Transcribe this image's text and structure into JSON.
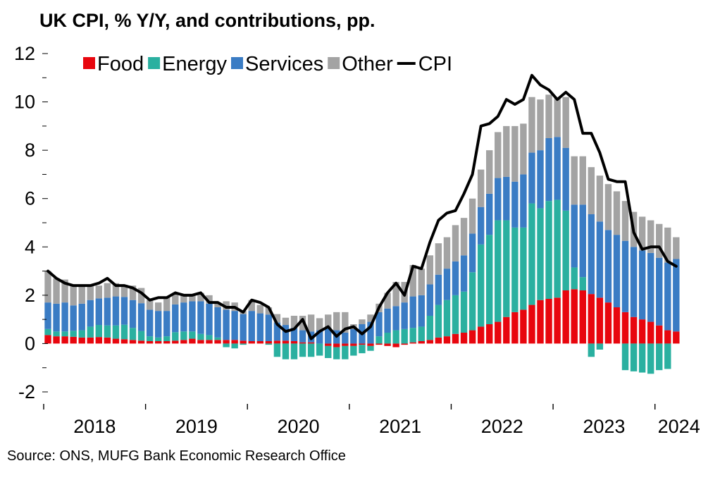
{
  "title": "UK CPI, % Y/Y, and contributions, pp.",
  "source": "Source: ONS, MUFG Bank Economic Research Office",
  "colors": {
    "Food": "#e8060e",
    "Energy": "#2ab0a0",
    "Services": "#3a7cc4",
    "Other": "#a3a3a3",
    "CPI": "#000000"
  },
  "chart_data": {
    "type": "bar",
    "stacked": true,
    "ylim": [
      -2,
      12
    ],
    "yticks": [
      "-2",
      "0",
      "2",
      "4",
      "6",
      "8",
      "10",
      "12"
    ],
    "xticklabels": [
      "2018",
      "2019",
      "2020",
      "2021",
      "2022",
      "2023",
      "2024"
    ],
    "legend": [
      "Food",
      "Energy",
      "Services",
      "Other",
      "CPI"
    ],
    "legend_position": "top",
    "x": [
      "2018-01",
      "2018-02",
      "2018-03",
      "2018-04",
      "2018-05",
      "2018-06",
      "2018-07",
      "2018-08",
      "2018-09",
      "2018-10",
      "2018-11",
      "2018-12",
      "2019-01",
      "2019-02",
      "2019-03",
      "2019-04",
      "2019-05",
      "2019-06",
      "2019-07",
      "2019-08",
      "2019-09",
      "2019-10",
      "2019-11",
      "2019-12",
      "2020-01",
      "2020-02",
      "2020-03",
      "2020-04",
      "2020-05",
      "2020-06",
      "2020-07",
      "2020-08",
      "2020-09",
      "2020-10",
      "2020-11",
      "2020-12",
      "2021-01",
      "2021-02",
      "2021-03",
      "2021-04",
      "2021-05",
      "2021-06",
      "2021-07",
      "2021-08",
      "2021-09",
      "2021-10",
      "2021-11",
      "2021-12",
      "2022-01",
      "2022-02",
      "2022-03",
      "2022-04",
      "2022-05",
      "2022-06",
      "2022-07",
      "2022-08",
      "2022-09",
      "2022-10",
      "2022-11",
      "2022-12",
      "2023-01",
      "2023-02",
      "2023-03",
      "2023-04",
      "2023-05",
      "2023-06",
      "2023-07",
      "2023-08",
      "2023-09",
      "2023-10",
      "2023-11",
      "2023-12",
      "2024-01",
      "2024-02",
      "2024-03"
    ],
    "series": [
      {
        "name": "Food",
        "values": [
          0.35,
          0.3,
          0.3,
          0.28,
          0.25,
          0.25,
          0.27,
          0.25,
          0.2,
          0.18,
          0.15,
          0.12,
          0.1,
          0.1,
          0.1,
          0.12,
          0.15,
          0.2,
          0.15,
          0.15,
          0.15,
          0.15,
          0.15,
          0.12,
          0.1,
          0.1,
          0.1,
          0.12,
          0.12,
          0.1,
          0.05,
          0.05,
          0.0,
          -0.1,
          -0.15,
          -0.1,
          -0.1,
          -0.05,
          -0.1,
          -0.05,
          -0.1,
          -0.15,
          -0.05,
          0.05,
          0.1,
          0.15,
          0.25,
          0.3,
          0.4,
          0.45,
          0.55,
          0.7,
          0.8,
          0.9,
          1.1,
          1.3,
          1.4,
          1.6,
          1.8,
          1.85,
          1.9,
          2.2,
          2.25,
          2.2,
          2.05,
          1.9,
          1.7,
          1.5,
          1.3,
          1.1,
          1.0,
          0.9,
          0.75,
          0.55,
          0.5
        ]
      },
      {
        "name": "Energy",
        "values": [
          0.25,
          0.2,
          0.2,
          0.25,
          0.3,
          0.45,
          0.5,
          0.5,
          0.55,
          0.6,
          0.5,
          0.4,
          0.2,
          0.15,
          0.2,
          0.35,
          0.35,
          0.3,
          0.25,
          0.2,
          0.1,
          -0.15,
          -0.2,
          -0.05,
          0.0,
          0.0,
          -0.05,
          -0.55,
          -0.65,
          -0.65,
          -0.55,
          -0.55,
          -0.5,
          -0.5,
          -0.5,
          -0.55,
          -0.4,
          -0.35,
          -0.2,
          0.3,
          0.45,
          0.55,
          0.6,
          0.6,
          0.6,
          1.0,
          1.35,
          1.5,
          1.6,
          1.7,
          2.4,
          3.4,
          3.7,
          4.2,
          4.0,
          3.5,
          3.4,
          4.2,
          3.8,
          4.05,
          4.05,
          3.3,
          0.9,
          0.55,
          -0.55,
          -0.25,
          0.0,
          0.0,
          -1.1,
          -1.15,
          -1.2,
          -1.25,
          -1.1,
          -1.05,
          0.0
        ]
      },
      {
        "name": "Services",
        "values": [
          1.1,
          1.15,
          1.2,
          1.05,
          1.1,
          1.1,
          1.1,
          1.15,
          1.2,
          1.15,
          1.15,
          1.15,
          1.1,
          1.1,
          1.05,
          1.15,
          1.2,
          1.25,
          1.35,
          1.3,
          1.25,
          1.25,
          1.2,
          1.1,
          1.25,
          1.15,
          1.1,
          0.75,
          0.65,
          0.55,
          0.5,
          0.45,
          0.55,
          0.65,
          0.55,
          0.45,
          0.6,
          0.8,
          0.9,
          1.0,
          1.0,
          1.0,
          1.1,
          1.3,
          1.3,
          1.3,
          1.25,
          1.3,
          1.4,
          1.5,
          1.6,
          1.55,
          1.7,
          1.75,
          1.8,
          1.9,
          2.2,
          2.1,
          2.4,
          2.6,
          2.6,
          2.6,
          2.6,
          3.0,
          3.3,
          3.15,
          3.0,
          3.0,
          2.95,
          2.9,
          2.85,
          2.85,
          2.8,
          2.8,
          3.0
        ]
      },
      {
        "name": "Other",
        "values": [
          1.3,
          1.05,
          0.95,
          0.82,
          0.75,
          0.6,
          0.53,
          0.6,
          0.55,
          0.5,
          0.6,
          0.63,
          0.4,
          0.35,
          0.55,
          0.48,
          0.3,
          0.25,
          0.35,
          0.35,
          0.2,
          0.35,
          0.35,
          0.13,
          0.45,
          0.35,
          0.3,
          0.35,
          0.3,
          0.5,
          0.6,
          0.7,
          0.5,
          0.55,
          0.75,
          0.85,
          0.2,
          0.2,
          0.3,
          0.35,
          0.65,
          1.0,
          0.85,
          1.3,
          1.1,
          1.2,
          1.3,
          1.3,
          1.5,
          1.55,
          1.45,
          1.55,
          1.8,
          1.9,
          2.1,
          2.3,
          2.1,
          2.3,
          2.1,
          1.8,
          1.6,
          2.1,
          2.0,
          2.0,
          1.95,
          1.9,
          1.9,
          1.8,
          1.65,
          1.45,
          1.4,
          1.35,
          1.4,
          1.45,
          0.9
        ]
      },
      {
        "name": "CPI",
        "type": "line",
        "values": [
          3.0,
          2.7,
          2.5,
          2.4,
          2.4,
          2.4,
          2.5,
          2.7,
          2.4,
          2.4,
          2.3,
          2.1,
          1.8,
          1.9,
          1.9,
          2.1,
          2.0,
          2.0,
          2.1,
          1.7,
          1.7,
          1.5,
          1.5,
          1.3,
          1.8,
          1.7,
          1.5,
          0.8,
          0.5,
          0.6,
          1.0,
          0.2,
          0.5,
          0.7,
          0.3,
          0.6,
          0.7,
          0.4,
          0.7,
          1.5,
          2.1,
          2.5,
          2.0,
          3.2,
          3.1,
          4.2,
          5.1,
          5.4,
          5.5,
          6.2,
          7.0,
          9.0,
          9.1,
          9.4,
          10.1,
          9.9,
          10.1,
          11.1,
          10.7,
          10.5,
          10.1,
          10.4,
          10.1,
          8.7,
          8.7,
          7.9,
          6.8,
          6.7,
          6.7,
          4.6,
          3.9,
          4.0,
          4.0,
          3.4,
          3.2
        ]
      }
    ]
  }
}
